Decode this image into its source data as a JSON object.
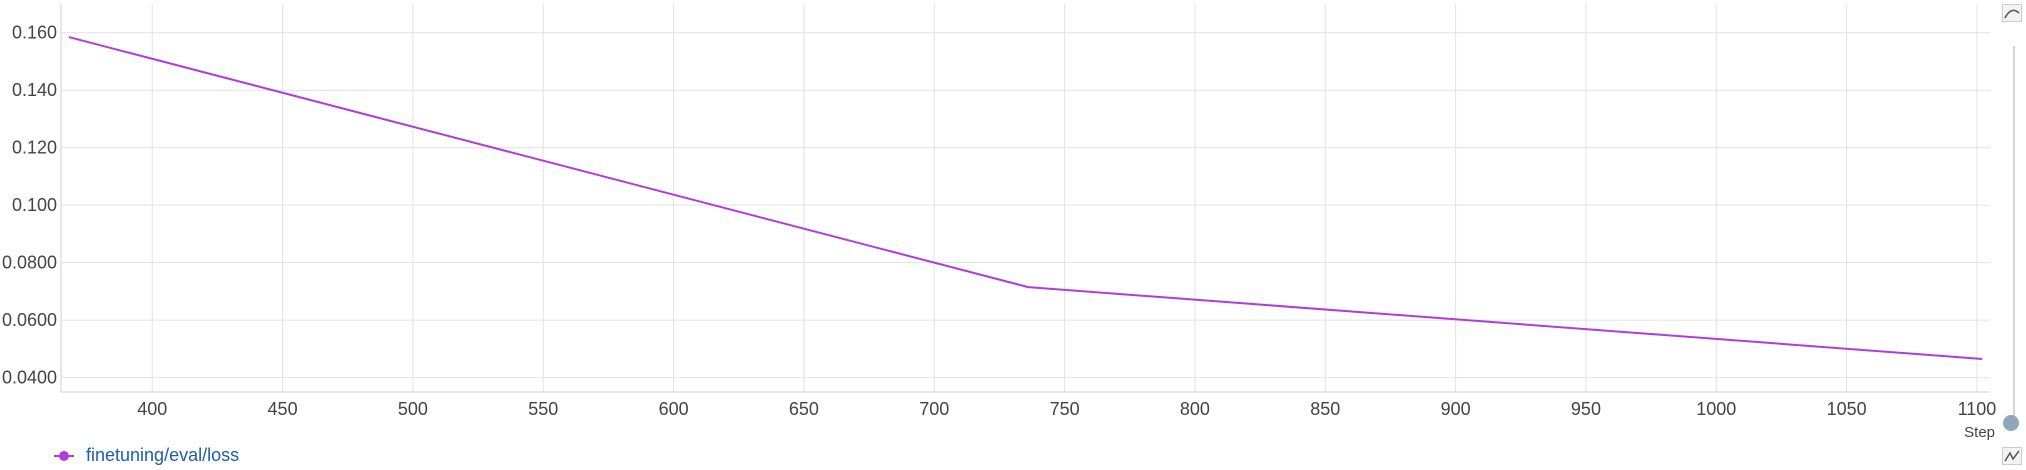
{
  "chart_data": {
    "type": "line",
    "xlabel": "Step",
    "ylabel": "",
    "xlim": [
      365,
      1105
    ],
    "ylim": [
      0.035,
      0.17
    ],
    "x_ticks": [
      "400",
      "450",
      "500",
      "550",
      "600",
      "650",
      "700",
      "750",
      "800",
      "850",
      "900",
      "950",
      "1000",
      "1050",
      "1100"
    ],
    "y_ticks": [
      "0.0400",
      "0.0600",
      "0.0800",
      "0.100",
      "0.120",
      "0.140",
      "0.160"
    ],
    "grid": true,
    "legend_position": "bottom-left",
    "series": [
      {
        "name": "finetuning/eval/loss",
        "color": "#b33bd8",
        "x": [
          368,
          736,
          1102
        ],
        "y": [
          0.1585,
          0.0715,
          0.0465
        ]
      }
    ]
  },
  "colors": {
    "grid": "#e2e2e2",
    "axis_text": "#444444",
    "legend_text": "#1a5fa8",
    "control": "#8fa7b8"
  },
  "icons": {
    "top_right": "smooth-curve-icon",
    "bottom_right": "sparkline-icon",
    "scroll_handle": "range-slider-handle"
  }
}
